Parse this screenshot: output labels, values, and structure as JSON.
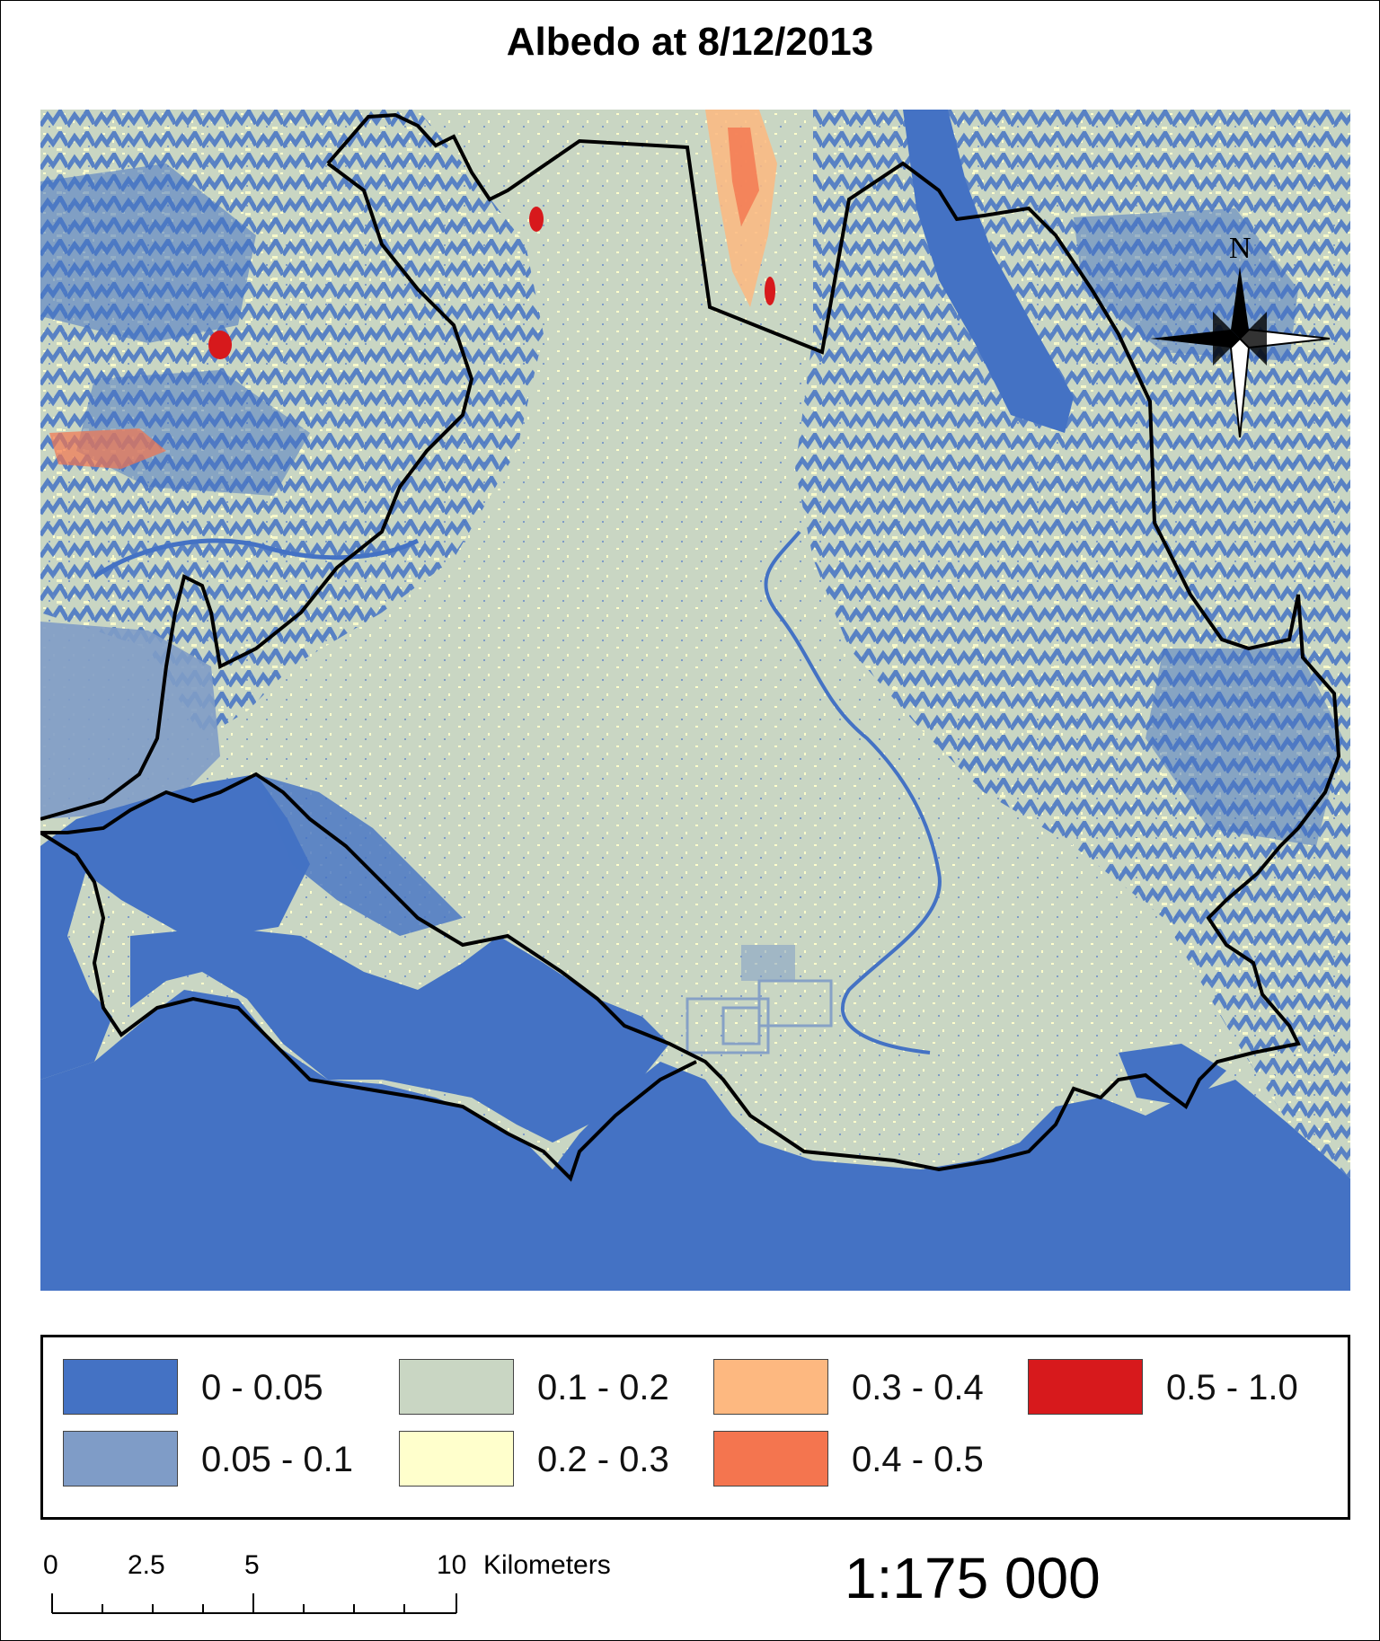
{
  "title": "Albedo at 8/12/2013",
  "legend": {
    "items": [
      {
        "label": "0 - 0.05",
        "color": "#4472C4"
      },
      {
        "label": "0.05 - 0.1",
        "color": "#7F9CC7"
      },
      {
        "label": "0.1 - 0.2",
        "color": "#C9D6C3"
      },
      {
        "label": "0.2 - 0.3",
        "color": "#FFFFCC"
      },
      {
        "label": "0.3 - 0.4",
        "color": "#FDB880"
      },
      {
        "label": "0.4 - 0.5",
        "color": "#F4754F"
      },
      {
        "label": "0.5 - 1.0",
        "color": "#D7191C"
      }
    ]
  },
  "north_arrow": {
    "label": "N"
  },
  "scale_bar": {
    "ticks": [
      "0",
      "2.5",
      "5",
      "10"
    ],
    "unit": "Kilometers"
  },
  "scale_ratio": "1:175 000"
}
